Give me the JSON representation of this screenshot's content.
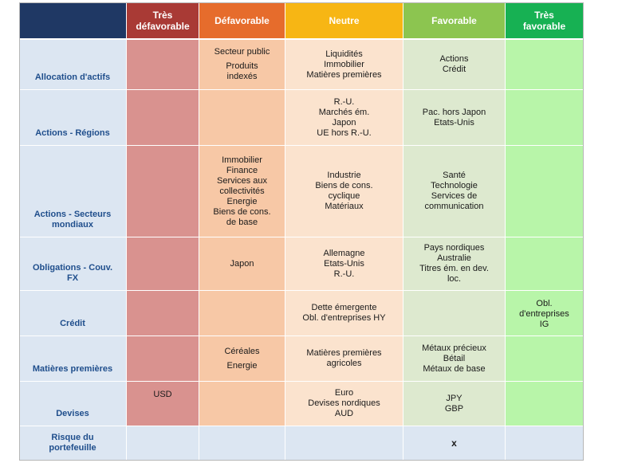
{
  "columns": [
    {
      "id": "row-label",
      "label": "",
      "color": "#1f3864"
    },
    {
      "id": "tres-defavorable",
      "label": "Très\ndéfavorable",
      "color": "#a93a35",
      "cell_color": "#d9928f"
    },
    {
      "id": "defavorable",
      "label": "Défavorable",
      "color": "#e66c2c",
      "cell_color": "#f7c8a6"
    },
    {
      "id": "neutre",
      "label": "Neutre",
      "color": "#f7b614",
      "cell_color": "#fbe3ce"
    },
    {
      "id": "favorable",
      "label": "Favorable",
      "color": "#8cc550",
      "cell_color": "#dde9cf"
    },
    {
      "id": "tres-favorable",
      "label": "Très\nfavorable",
      "color": "#17b153",
      "cell_color": "#b8f5a9"
    }
  ],
  "row_label_color": "#dce6f2",
  "last_row_color": "#dce6f2",
  "rows": [
    {
      "label": "Allocation d'actifs",
      "cells": [
        [],
        [
          "Secteur public",
          "",
          "Produits",
          "indexés"
        ],
        [
          "Liquidités",
          "Immobilier",
          "Matières premières"
        ],
        [
          "Actions",
          "Crédit"
        ],
        []
      ]
    },
    {
      "label": "Actions - Régions",
      "cells": [
        [],
        [],
        [
          "R.-U.",
          "Marchés ém.",
          "Japon",
          "UE hors R.-U."
        ],
        [
          "Pac. hors Japon",
          "Etats-Unis"
        ],
        []
      ]
    },
    {
      "label": "Actions - Secteurs\nmondiaux",
      "cells": [
        [],
        [
          "Immobilier",
          "Finance",
          "Services aux",
          "collectivités",
          "Energie",
          "Biens de cons.",
          "de base"
        ],
        [
          "Industrie",
          "Biens de cons.",
          "cyclique",
          "Matériaux"
        ],
        [
          "Santé",
          "Technologie",
          "Services de",
          "communication"
        ],
        []
      ]
    },
    {
      "label": "Obligations - Couv.\nFX",
      "cells": [
        [],
        [
          "Japon"
        ],
        [
          "Allemagne",
          "Etats-Unis",
          "R.-U."
        ],
        [
          "Pays nordiques",
          "Australie",
          "Titres ém. en dev.",
          "loc."
        ],
        []
      ]
    },
    {
      "label": "Crédit",
      "cells": [
        [],
        [],
        [
          "Dette émergente",
          "Obl. d'entreprises HY"
        ],
        [],
        [
          "Obl.",
          "d'entreprises",
          "IG"
        ]
      ]
    },
    {
      "label": "Matières premières",
      "cells": [
        [],
        [
          "Céréales",
          "",
          "Energie"
        ],
        [
          "Matières premières",
          "agricoles"
        ],
        [
          "Métaux précieux",
          "Bétail",
          "Métaux de base"
        ],
        []
      ]
    },
    {
      "label": "Devises",
      "cells": [
        [
          "USD"
        ],
        [],
        [
          "Euro",
          "Devises nordiques",
          "AUD"
        ],
        [
          "JPY",
          "GBP"
        ],
        []
      ]
    },
    {
      "label": "Risque du\nportefeuille",
      "cells": [
        [],
        [],
        [],
        [
          "x"
        ],
        []
      ]
    }
  ]
}
